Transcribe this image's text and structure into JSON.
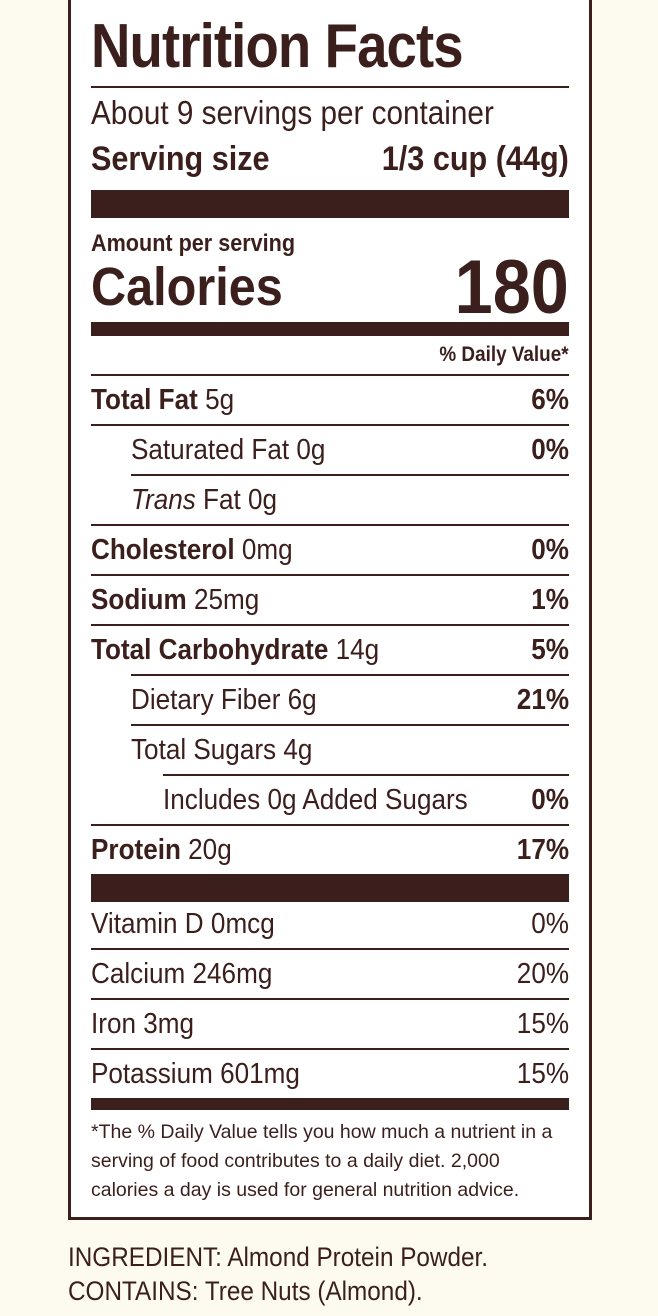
{
  "label": {
    "title": "Nutrition Facts",
    "servings_per_container": "About 9 servings per container",
    "serving_size_label": "Serving size",
    "serving_size_value": "1/3 cup (44g)",
    "amount_per_serving": "Amount per serving",
    "calories_label": "Calories",
    "calories_value": "180",
    "daily_value_header": "% Daily Value*",
    "nutrients": [
      {
        "name": "Total Fat",
        "amount": "5g",
        "dv": "6%"
      },
      {
        "name": "Saturated Fat",
        "amount": "0g",
        "dv": "0%"
      },
      {
        "name": "Trans",
        "suffix": "Fat",
        "amount": "0g",
        "dv": ""
      },
      {
        "name": "Cholesterol",
        "amount": "0mg",
        "dv": "0%"
      },
      {
        "name": "Sodium",
        "amount": "25mg",
        "dv": "1%"
      },
      {
        "name": "Total Carbohydrate",
        "amount": "14g",
        "dv": "5%"
      },
      {
        "name": "Dietary Fiber",
        "amount": "6g",
        "dv": "21%"
      },
      {
        "name": "Total Sugars",
        "amount": "4g",
        "dv": ""
      },
      {
        "name": "Includes 0g Added Sugars",
        "amount": "",
        "dv": "0%"
      },
      {
        "name": "Protein",
        "amount": "20g",
        "dv": "17%"
      }
    ],
    "vitamins": [
      {
        "name": "Vitamin D",
        "amount": "0mcg",
        "dv": "0%"
      },
      {
        "name": "Calcium",
        "amount": "246mg",
        "dv": "20%"
      },
      {
        "name": "Iron",
        "amount": "3mg",
        "dv": "15%"
      },
      {
        "name": "Potassium",
        "amount": "601mg",
        "dv": "15%"
      }
    ],
    "footnote": "*The % Daily Value tells you how much a nutrient in a serving of food contributes to a daily diet. 2,000 calories a day is used for general nutrition advice."
  },
  "ingredients": {
    "line1": "INGREDIENT: Almond Protein Powder.",
    "line2": "CONTAINS: Tree Nuts (Almond)."
  },
  "colors": {
    "ink": "#3a1f1c",
    "background": "#fdfaf0",
    "panel": "#ffffff"
  }
}
